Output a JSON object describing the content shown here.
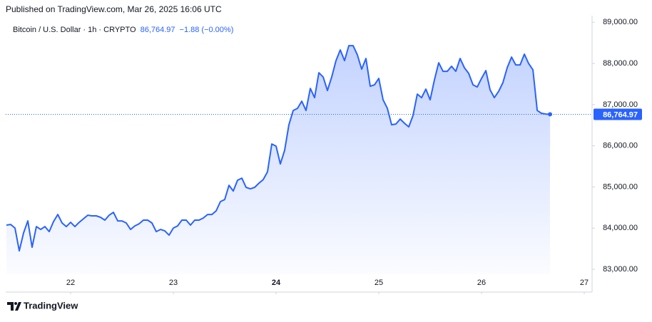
{
  "chart_data": {
    "type": "line",
    "header": "Published on TradingView.com, Mar 26, 2025 16:06 UTC",
    "price_label": "86,764.97",
    "change": "−1.88 (−0.00%)",
    "brand": "TradingView",
    "x": [
      21.375,
      21.4167,
      21.4583,
      21.5,
      21.5417,
      21.5833,
      21.625,
      21.6667,
      21.7083,
      21.75,
      21.7917,
      21.8333,
      21.875,
      21.9167,
      21.9583,
      22,
      22.0417,
      22.0833,
      22.125,
      22.1667,
      22.2083,
      22.25,
      22.2917,
      22.3333,
      22.375,
      22.4167,
      22.4583,
      22.5,
      22.5417,
      22.5833,
      22.625,
      22.6667,
      22.7083,
      22.75,
      22.7917,
      22.8333,
      22.875,
      22.9167,
      22.9583,
      23,
      23.0417,
      23.0833,
      23.125,
      23.1667,
      23.2083,
      23.25,
      23.2917,
      23.3333,
      23.375,
      23.4167,
      23.4583,
      23.5,
      23.5417,
      23.5833,
      23.625,
      23.6667,
      23.7083,
      23.75,
      23.7917,
      23.8333,
      23.875,
      23.9167,
      23.9583,
      24,
      24.0417,
      24.0833,
      24.125,
      24.1667,
      24.2083,
      24.25,
      24.2917,
      24.3333,
      24.375,
      24.4167,
      24.4583,
      24.5,
      24.5417,
      24.5833,
      24.625,
      24.6667,
      24.7083,
      24.75,
      24.7917,
      24.8333,
      24.875,
      24.9167,
      24.9583,
      25,
      25.0417,
      25.0833,
      25.125,
      25.1667,
      25.2083,
      25.25,
      25.2917,
      25.3333,
      25.375,
      25.4167,
      25.4583,
      25.5,
      25.5417,
      25.5833,
      25.625,
      25.6667,
      25.7083,
      25.75,
      25.7917,
      25.8333,
      25.875,
      25.9167,
      25.9583,
      26,
      26.0417,
      26.0833,
      26.125,
      26.1667,
      26.2083,
      26.25,
      26.2917,
      26.3333,
      26.375,
      26.4167,
      26.4583,
      26.5,
      26.5417,
      26.5833,
      26.625,
      26.6667
    ],
    "series": [
      {
        "name": "Bitcoin / U.S. Dollar · 1h · CRYPTO",
        "color": "#2962ff",
        "values": [
          84073,
          84090,
          84003,
          83450,
          83882,
          84176,
          83536,
          84038,
          83969,
          84038,
          83917,
          84159,
          84332,
          84125,
          84038,
          84142,
          84038,
          84142,
          84228,
          84315,
          84298,
          84298,
          84263,
          84194,
          84315,
          84384,
          84176,
          84176,
          84125,
          83969,
          84055,
          84107,
          84194,
          84194,
          84125,
          83917,
          83969,
          83934,
          83830,
          84003,
          84055,
          84194,
          84194,
          84073,
          84194,
          84194,
          84246,
          84332,
          84332,
          84419,
          84644,
          84695,
          85041,
          84903,
          85163,
          85214,
          84990,
          84955,
          84990,
          85093,
          85180,
          85370,
          86045,
          85993,
          85560,
          85889,
          86512,
          86858,
          86910,
          87083,
          86858,
          87394,
          87169,
          87775,
          87671,
          87342,
          87671,
          88069,
          88328,
          88069,
          88432,
          88432,
          88207,
          87861,
          88121,
          87446,
          87481,
          87636,
          87117,
          86910,
          86512,
          86529,
          86650,
          86547,
          86460,
          86737,
          87256,
          87169,
          87377,
          87117,
          87602,
          88017,
          87809,
          87809,
          87931,
          87809,
          88121,
          87896,
          87758,
          87481,
          87429,
          87636,
          87827,
          87360,
          87169,
          87325,
          87533,
          87896,
          88155,
          87965,
          87965,
          88225,
          88000,
          87844,
          86858,
          86789,
          86770,
          86764.97
        ]
      }
    ],
    "xlim": [
      21.368,
      27.076
    ],
    "xticks": [
      22,
      23,
      24,
      25,
      26,
      27
    ],
    "ylim": [
      82880,
      89160
    ],
    "yticks": [
      {
        "value": 83000,
        "label": "83,000.00"
      },
      {
        "value": 84000,
        "label": "84,000.00"
      },
      {
        "value": 85000,
        "label": "85,000.00"
      },
      {
        "value": 86000,
        "label": "86,000.00"
      },
      {
        "value": 87000,
        "label": "87,000.00"
      },
      {
        "value": 88000,
        "label": "88,000.00"
      },
      {
        "value": 89000,
        "label": "89,000.00"
      }
    ],
    "grid": false
  }
}
